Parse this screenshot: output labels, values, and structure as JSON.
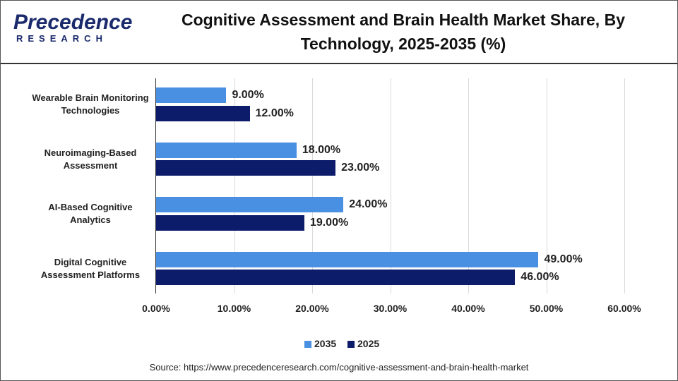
{
  "logo": {
    "name": "Precedence",
    "tagline": "RESEARCH"
  },
  "chart_data": {
    "type": "bar",
    "orientation": "horizontal",
    "title": "Cognitive Assessment and Brain Health Market Share, By Technology, 2025-2035 (%)",
    "categories": [
      "Wearable Brain Monitoring Technologies",
      "Neuroimaging-Based Assessment",
      "AI-Based Cognitive Analytics",
      "Digital Cognitive Assessment Platforms"
    ],
    "series": [
      {
        "name": "2035",
        "color": "#4a90e2",
        "values": [
          9,
          18,
          24,
          49
        ],
        "value_labels": [
          "9.00%",
          "18.00%",
          "24.00%",
          "49.00%"
        ]
      },
      {
        "name": "2025",
        "color": "#0c1c6b",
        "values": [
          12,
          23,
          19,
          46
        ],
        "value_labels": [
          "12.00%",
          "23.00%",
          "19.00%",
          "46.00%"
        ]
      }
    ],
    "xlim": [
      0,
      60
    ],
    "xticks": [
      {
        "value": 0,
        "label": "0.00%"
      },
      {
        "value": 10,
        "label": "10.00%"
      },
      {
        "value": 20,
        "label": "20.00%"
      },
      {
        "value": 30,
        "label": "30.00%"
      },
      {
        "value": 40,
        "label": "40.00%"
      },
      {
        "value": 50,
        "label": "50.00%"
      },
      {
        "value": 60,
        "label": "60.00%"
      }
    ],
    "grid": true,
    "legend": "bottom",
    "source": "Source: https://www.precedenceresearch.com/cognitive-assessment-and-brain-health-market"
  }
}
